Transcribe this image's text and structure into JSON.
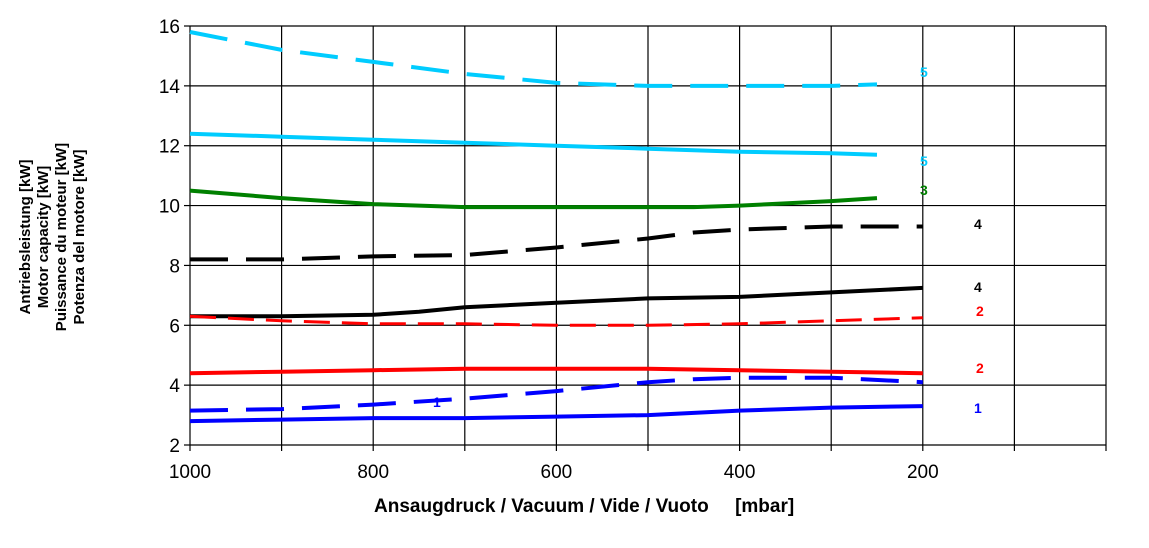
{
  "chart_data": {
    "type": "line",
    "xlabel": "Ansaugdruck / Vacuum / Vide / Vuoto     [mbar]",
    "ylabel_lines": [
      "Antriebsleistung [kW]",
      "Motor capacity [kW]",
      "Puissance du moteur [kW]",
      "Potenza del motore [kW]"
    ],
    "xlim": [
      1000,
      0
    ],
    "ylim": [
      2,
      16
    ],
    "x_ticks": [
      1000,
      800,
      600,
      400,
      200
    ],
    "x_tick_labels": [
      "1000",
      "800",
      "600",
      "400",
      "200"
    ],
    "x_grid": [
      1000,
      900,
      800,
      700,
      600,
      500,
      400,
      300,
      200,
      100,
      0
    ],
    "y_ticks": [
      2,
      4,
      6,
      8,
      10,
      12,
      14,
      16
    ],
    "y_tick_labels": [
      "2",
      "4",
      "6",
      "8",
      "10",
      "12",
      "14",
      "16"
    ],
    "grid": true,
    "series": [
      {
        "label": "5",
        "color": "#00ccff",
        "dashed": true,
        "x": [
          1000,
          900,
          800,
          700,
          600,
          500,
          400,
          300,
          250
        ],
        "y": [
          15.8,
          15.2,
          14.8,
          14.4,
          14.1,
          14.0,
          14.0,
          14.0,
          14.05
        ]
      },
      {
        "label": "5",
        "color": "#00ccff",
        "dashed": false,
        "x": [
          1000,
          900,
          800,
          700,
          600,
          500,
          400,
          300,
          250
        ],
        "y": [
          12.4,
          12.3,
          12.2,
          12.1,
          12.0,
          11.9,
          11.8,
          11.75,
          11.7
        ]
      },
      {
        "label": "3",
        "color": "#008000",
        "dashed": false,
        "x": [
          1000,
          900,
          800,
          700,
          600,
          500,
          450,
          400,
          300,
          250
        ],
        "y": [
          10.5,
          10.25,
          10.05,
          9.95,
          9.95,
          9.95,
          9.95,
          10.0,
          10.15,
          10.25
        ]
      },
      {
        "label": "4",
        "color": "#000000",
        "dashed": true,
        "x": [
          1000,
          900,
          800,
          700,
          600,
          500,
          450,
          400,
          300,
          200
        ],
        "y": [
          8.2,
          8.2,
          8.3,
          8.35,
          8.6,
          8.9,
          9.1,
          9.2,
          9.3,
          9.3
        ]
      },
      {
        "label": "4",
        "color": "#000000",
        "dashed": false,
        "x": [
          1000,
          900,
          800,
          750,
          700,
          600,
          500,
          400,
          300,
          200
        ],
        "y": [
          6.3,
          6.3,
          6.35,
          6.45,
          6.6,
          6.75,
          6.9,
          6.95,
          7.1,
          7.25
        ]
      },
      {
        "label": "2",
        "color": "#ff0000",
        "dashed": true,
        "thin": true,
        "x": [
          1000,
          900,
          800,
          700,
          600,
          500,
          400,
          300,
          200
        ],
        "y": [
          6.3,
          6.15,
          6.05,
          6.05,
          6.0,
          6.0,
          6.05,
          6.15,
          6.25
        ]
      },
      {
        "label": "2",
        "color": "#ff0000",
        "dashed": false,
        "x": [
          1000,
          900,
          800,
          700,
          600,
          500,
          400,
          300,
          200
        ],
        "y": [
          4.4,
          4.45,
          4.5,
          4.55,
          4.55,
          4.55,
          4.5,
          4.45,
          4.4
        ]
      },
      {
        "label": "1",
        "color": "#0000ff",
        "dashed": true,
        "x": [
          1000,
          900,
          800,
          700,
          600,
          500,
          450,
          400,
          300,
          200
        ],
        "y": [
          3.15,
          3.2,
          3.35,
          3.55,
          3.8,
          4.1,
          4.2,
          4.25,
          4.25,
          4.1
        ]
      },
      {
        "label": "1",
        "color": "#0000ff",
        "dashed": false,
        "x": [
          1000,
          900,
          800,
          700,
          600,
          500,
          400,
          300,
          200
        ],
        "y": [
          2.8,
          2.85,
          2.9,
          2.9,
          2.95,
          3.0,
          3.15,
          3.25,
          3.3
        ]
      }
    ]
  }
}
